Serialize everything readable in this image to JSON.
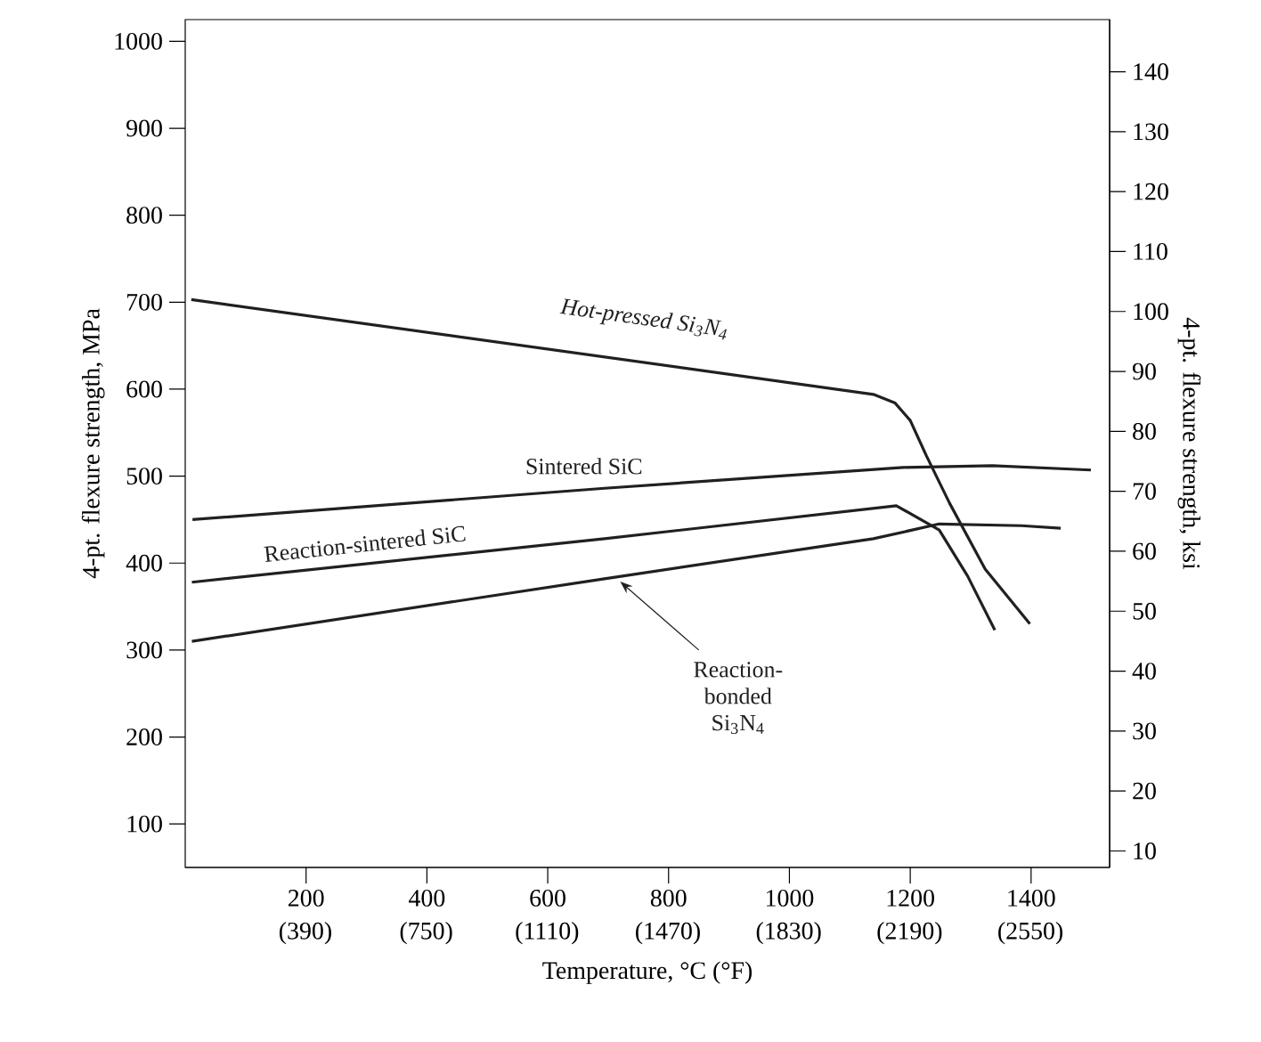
{
  "chart_data": {
    "type": "line",
    "xlabel": "Temperature, °C (°F)",
    "ylabel": "4-pt. flexure strength, MPa",
    "y2label": "4-pt. flexure strength, ksi",
    "xlim": [
      0,
      1530
    ],
    "ylim": [
      50,
      1025
    ],
    "y2lim": [
      7.25,
      148.7
    ],
    "xticks": [
      200,
      400,
      600,
      800,
      1000,
      1200,
      1400
    ],
    "x2lim": [
      32,
      2786
    ],
    "x2ticks": [
      {
        "value": 390,
        "label": "(390)"
      },
      {
        "value": 750,
        "label": "(750)"
      },
      {
        "value": 1110,
        "label": "(1110)"
      },
      {
        "value": 1470,
        "label": "(1470)"
      },
      {
        "value": 1830,
        "label": "(1830)"
      },
      {
        "value": 2190,
        "label": "(2190)"
      },
      {
        "value": 2550,
        "label": "(2550)"
      }
    ],
    "yticks": [
      100,
      200,
      300,
      400,
      500,
      600,
      700,
      800,
      900,
      1000
    ],
    "y2ticks": [
      10,
      20,
      30,
      40,
      50,
      60,
      70,
      80,
      90,
      100,
      110,
      120,
      130,
      140
    ],
    "grid": false,
    "legend": false,
    "marker": "none",
    "line_style": "solid",
    "series": [
      {
        "name": "Hot-pressed Si$_{3}$N$_{4}$",
        "color": "#231f20",
        "x": [
          10,
          1139,
          1175,
          1200,
          1227,
          1265,
          1324,
          1398
        ],
        "values": [
          703,
          594,
          584,
          564,
          523,
          469,
          393,
          330
        ]
      },
      {
        "name": "Sintered SiC",
        "color": "#231f20",
        "x": [
          12,
          694,
          1188,
          1336,
          1499
        ],
        "values": [
          450,
          486,
          510,
          512,
          507
        ]
      },
      {
        "name": "Reaction-sintered SiC",
        "color": "#231f20",
        "x": [
          11,
          694,
          1177,
          1248,
          1295,
          1340
        ],
        "values": [
          378,
          428,
          466,
          438,
          385,
          323
        ]
      },
      {
        "name": "Reaction-bonded Si$_{3}$N$_{4}$",
        "color": "#231f20",
        "x": [
          11,
          694,
          1139,
          1248,
          1384,
          1449
        ],
        "values": [
          310,
          382,
          428,
          445,
          443,
          440
        ]
      }
    ]
  }
}
